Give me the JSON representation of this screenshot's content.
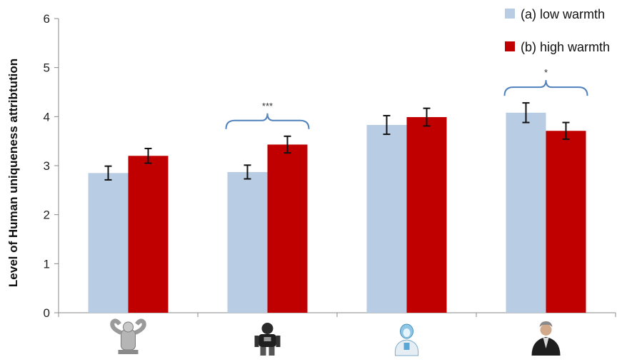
{
  "chart_data": {
    "type": "bar",
    "ylabel": "Level of Human uniqueness attribtution",
    "xlabel": "",
    "ylim": [
      0,
      6
    ],
    "yticks": [
      "0",
      "1",
      "2",
      "3",
      "4",
      "5",
      "6"
    ],
    "categories": [
      "",
      "",
      "",
      ""
    ],
    "category_icons": [
      "industrial-robot-icon",
      "humanoid-robot-icon",
      "android-robot-icon",
      "human-person-icon"
    ],
    "series": [
      {
        "name": "(a) low warmth",
        "color": "#b8cce4",
        "values": [
          2.85,
          2.87,
          3.83,
          4.08
        ],
        "errors": [
          0.14,
          0.14,
          0.19,
          0.2
        ]
      },
      {
        "name": "(b) high warmth",
        "color": "#c00000",
        "values": [
          3.2,
          3.43,
          3.99,
          3.71
        ],
        "errors": [
          0.15,
          0.17,
          0.18,
          0.17
        ]
      }
    ],
    "annotations": [
      {
        "category_index": 1,
        "text": "***"
      },
      {
        "category_index": 3,
        "text": "*"
      }
    ],
    "legend_position": "top-right",
    "grid": false
  }
}
